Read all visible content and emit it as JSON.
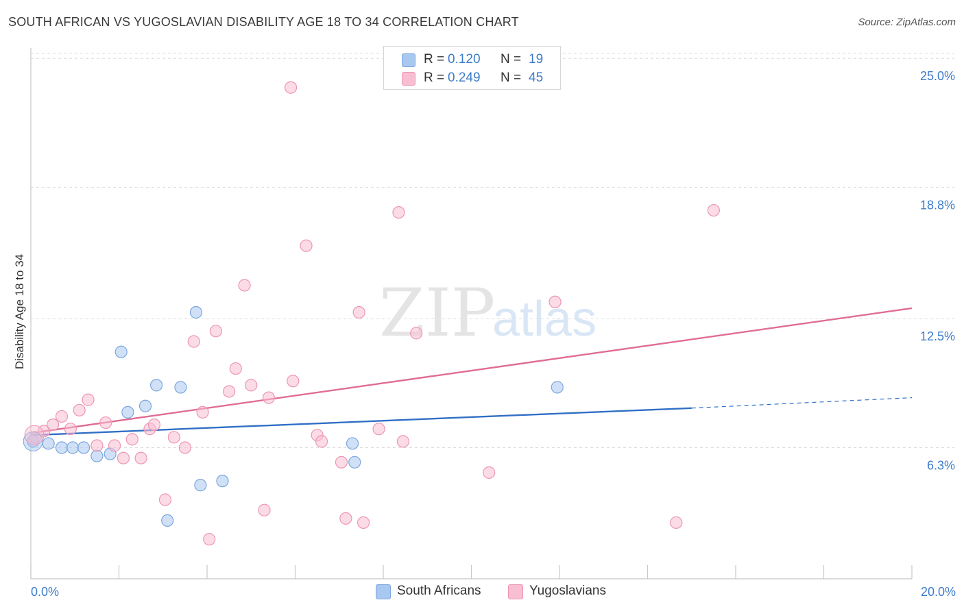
{
  "title": "SOUTH AFRICAN VS YUGOSLAVIAN DISABILITY AGE 18 TO 34 CORRELATION CHART",
  "source": "Source: ZipAtlas.com",
  "watermark": {
    "zip": "ZIP",
    "atlas": "atlas"
  },
  "legend": {
    "rows": [
      {
        "r_label": "R =",
        "r_value": "0.120",
        "n_label": "N =",
        "n_value": "19",
        "color": "#a9c8f0",
        "border": "#7aa6dd"
      },
      {
        "r_label": "R =",
        "r_value": "0.249",
        "n_label": "N =",
        "n_value": "45",
        "color": "#f8bfd2",
        "border": "#ee95b3"
      }
    ]
  },
  "bottom_legend": [
    {
      "label": "South Africans",
      "color": "#a9c8f0",
      "border": "#7aa6dd"
    },
    {
      "label": "Yugoslavians",
      "color": "#f8bfd2",
      "border": "#ee95b3"
    }
  ],
  "chart_data": {
    "type": "scatter",
    "xlabel": "",
    "ylabel": "Disability Age 18 to 34",
    "xlim": [
      0,
      20
    ],
    "ylim": [
      0,
      25.5
    ],
    "x_tick_labels": [
      {
        "value": 0,
        "label": "0.0%"
      },
      {
        "value": 20,
        "label": "20.0%"
      }
    ],
    "y_tick_labels": [
      {
        "value": 6.3,
        "label": "6.3%"
      },
      {
        "value": 12.5,
        "label": "12.5%"
      },
      {
        "value": 18.8,
        "label": "18.8%"
      },
      {
        "value": 25.0,
        "label": "25.0%"
      }
    ],
    "grid": true,
    "series": [
      {
        "name": "South Africans",
        "color": "#7aa6dd",
        "fill": "#a9c8f0",
        "trend_color": "#2f6fc6",
        "trend": {
          "x0": 0,
          "y0": 6.9,
          "x1": 15.0,
          "y1": 8.2,
          "dash_to_x": 20,
          "dash_to_y": 8.7
        },
        "points": [
          [
            0.05,
            6.6
          ],
          [
            0.4,
            6.5
          ],
          [
            0.7,
            6.3
          ],
          [
            0.95,
            6.3
          ],
          [
            1.2,
            6.3
          ],
          [
            1.5,
            5.9
          ],
          [
            1.8,
            6.0
          ],
          [
            2.05,
            10.9
          ],
          [
            2.2,
            8.0
          ],
          [
            2.6,
            8.3
          ],
          [
            2.85,
            9.3
          ],
          [
            3.4,
            9.2
          ],
          [
            3.75,
            12.8
          ],
          [
            3.85,
            4.5
          ],
          [
            4.35,
            4.7
          ],
          [
            3.1,
            2.8
          ],
          [
            7.3,
            6.5
          ],
          [
            7.35,
            5.6
          ],
          [
            11.95,
            9.2
          ]
        ]
      },
      {
        "name": "Yugoslavians",
        "color": "#ee95b3",
        "fill": "#f8bfd2",
        "trend_color": "#e06c94",
        "trend": {
          "x0": 0,
          "y0": 7.0,
          "x1": 20,
          "y1": 13.0
        },
        "points": [
          [
            0.1,
            6.8
          ],
          [
            0.3,
            7.1
          ],
          [
            0.5,
            7.4
          ],
          [
            0.7,
            7.8
          ],
          [
            0.9,
            7.2
          ],
          [
            1.1,
            8.1
          ],
          [
            1.3,
            8.6
          ],
          [
            1.5,
            6.4
          ],
          [
            1.7,
            7.5
          ],
          [
            1.9,
            6.4
          ],
          [
            2.1,
            5.8
          ],
          [
            2.3,
            6.7
          ],
          [
            2.5,
            5.8
          ],
          [
            2.7,
            7.2
          ],
          [
            2.8,
            7.4
          ],
          [
            3.05,
            3.8
          ],
          [
            3.25,
            6.8
          ],
          [
            3.5,
            6.3
          ],
          [
            3.7,
            11.4
          ],
          [
            3.9,
            8.0
          ],
          [
            4.05,
            1.9
          ],
          [
            4.2,
            11.9
          ],
          [
            4.5,
            9.0
          ],
          [
            4.65,
            10.1
          ],
          [
            4.85,
            14.1
          ],
          [
            5.0,
            9.3
          ],
          [
            5.3,
            3.3
          ],
          [
            5.4,
            8.7
          ],
          [
            5.9,
            23.6
          ],
          [
            5.95,
            9.5
          ],
          [
            6.25,
            16.0
          ],
          [
            6.5,
            6.9
          ],
          [
            6.6,
            6.6
          ],
          [
            7.05,
            5.6
          ],
          [
            7.15,
            2.9
          ],
          [
            7.45,
            12.8
          ],
          [
            7.55,
            2.7
          ],
          [
            7.9,
            7.2
          ],
          [
            8.35,
            17.6
          ],
          [
            8.45,
            6.6
          ],
          [
            8.75,
            11.8
          ],
          [
            10.4,
            5.1
          ],
          [
            11.9,
            13.3
          ],
          [
            14.65,
            2.7
          ],
          [
            15.5,
            17.7
          ]
        ]
      }
    ]
  }
}
